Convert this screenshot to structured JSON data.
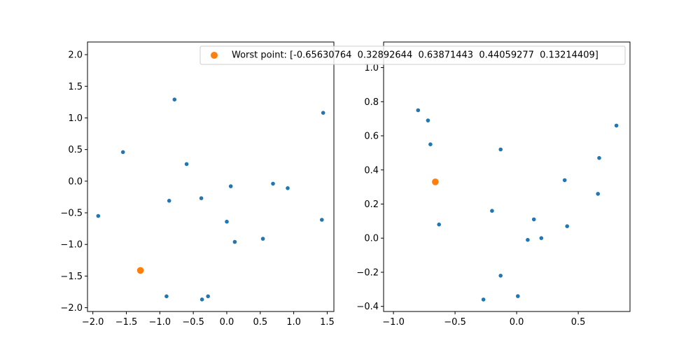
{
  "chart_data": [
    {
      "type": "scatter",
      "xlim": [
        -2.08,
        1.6
      ],
      "ylim": [
        -2.06,
        2.2
      ],
      "xticks": [
        -2.0,
        -1.5,
        -1.0,
        -0.5,
        0.0,
        0.5,
        1.0,
        1.5
      ],
      "yticks": [
        -2.0,
        -1.5,
        -1.0,
        -0.5,
        0.0,
        0.5,
        1.0,
        1.5,
        2.0
      ],
      "xtick_labels": [
        "−2.0",
        "−1.5",
        "−1.0",
        "−0.5",
        "0.0",
        "0.5",
        "1.0",
        "1.5"
      ],
      "ytick_labels": [
        "−2.0",
        "−1.5",
        "−1.0",
        "−0.5",
        "0.0",
        "0.5",
        "1.0",
        "1.5",
        "2.0"
      ],
      "grid": false,
      "series": [
        {
          "color": "#1f77b4",
          "points": [
            [
              -1.92,
              -0.55
            ],
            [
              -1.55,
              0.46
            ],
            [
              -0.78,
              1.29
            ],
            [
              -0.6,
              0.27
            ],
            [
              -0.86,
              -0.31
            ],
            [
              -0.38,
              -0.27
            ],
            [
              0.06,
              -0.08
            ],
            [
              0.69,
              -0.04
            ],
            [
              0.91,
              -0.11
            ],
            [
              1.44,
              1.08
            ],
            [
              1.42,
              -0.61
            ],
            [
              0.0,
              -0.64
            ],
            [
              0.12,
              -0.96
            ],
            [
              0.54,
              -0.91
            ],
            [
              -0.9,
              -1.82
            ],
            [
              -0.37,
              -1.87
            ],
            [
              -0.28,
              -1.82
            ]
          ]
        },
        {
          "name": "Worst point: [-0.65630764  0.32892644  0.63871443  0.44059277  0.13214409]",
          "color": "#ff7f0e",
          "points": [
            [
              -1.29,
              -1.41
            ]
          ]
        }
      ]
    },
    {
      "type": "scatter",
      "xlim": [
        -1.08,
        0.92
      ],
      "ylim": [
        -0.43,
        1.15
      ],
      "xticks": [
        -1.0,
        -0.5,
        0.0,
        0.5
      ],
      "yticks": [
        -0.4,
        -0.2,
        0.0,
        0.2,
        0.4,
        0.6,
        0.8,
        1.0
      ],
      "xtick_labels": [
        "−1.0",
        "−0.5",
        "0.0",
        "0.5"
      ],
      "ytick_labels": [
        "−0.4",
        "−0.2",
        "0.0",
        "0.2",
        "0.4",
        "0.6",
        "0.8",
        "1.0"
      ],
      "grid": false,
      "series": [
        {
          "color": "#1f77b4",
          "points": [
            [
              -0.8,
              0.75
            ],
            [
              -0.72,
              0.69
            ],
            [
              -0.7,
              0.55
            ],
            [
              -0.13,
              0.52
            ],
            [
              -0.63,
              0.08
            ],
            [
              -0.2,
              0.16
            ],
            [
              0.14,
              0.11
            ],
            [
              0.09,
              -0.01
            ],
            [
              0.2,
              0.0
            ],
            [
              0.39,
              0.34
            ],
            [
              0.41,
              0.07
            ],
            [
              0.66,
              0.26
            ],
            [
              0.67,
              0.47
            ],
            [
              0.81,
              0.66
            ],
            [
              -0.13,
              -0.22
            ],
            [
              -0.27,
              -0.36
            ],
            [
              0.01,
              -0.34
            ]
          ]
        },
        {
          "name": "Worst point: [-0.65630764  0.32892644  0.63871443  0.44059277  0.13214409]",
          "color": "#ff7f0e",
          "points": [
            [
              -0.66,
              0.33
            ]
          ]
        }
      ]
    }
  ],
  "legend": {
    "placement": "top, spanning both plots",
    "label": "Worst point: [-0.65630764  0.32892644  0.63871443  0.44059277  0.13214409]",
    "marker_color": "#ff7f0e"
  }
}
